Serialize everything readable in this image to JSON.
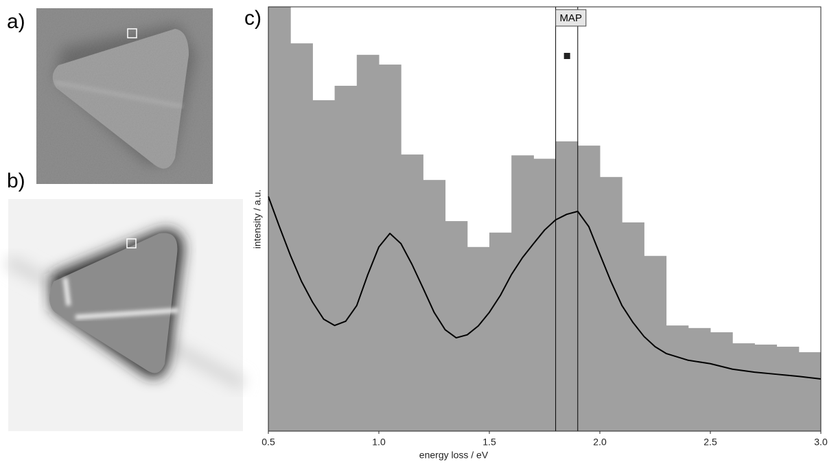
{
  "panel_labels": [
    "a)",
    "b)",
    "c)"
  ],
  "chart_data": {
    "type": "histogram",
    "xlabel": "energy loss / eV",
    "ylabel": "intensity / a.u.",
    "xlim": [
      0.5,
      3.0
    ],
    "ylim": [
      0,
      100
    ],
    "xticks": [
      0.5,
      {
        "value": 1,
        "label": "1.0"
      },
      1.5,
      {
        "value": 2,
        "label": "2.0"
      },
      2.5,
      {
        "value": 3,
        "label": "3.0"
      }
    ],
    "bins": [
      0.5,
      0.6,
      0.7,
      0.8,
      0.9,
      1.0,
      1.1,
      1.2,
      1.3,
      1.4,
      1.5,
      1.6,
      1.7,
      1.8,
      1.9,
      2.0,
      2.1,
      2.2,
      2.3,
      2.4,
      2.5,
      2.6,
      2.7,
      2.8,
      2.9,
      3.0
    ],
    "values": [
      100,
      91.4,
      78.0,
      81.4,
      88.7,
      86.4,
      65.2,
      59.2,
      49.5,
      43.4,
      46.8,
      65.0,
      64.2,
      68.3,
      67.3,
      59.9,
      49.2,
      41.3,
      24.9,
      24.3,
      23.3,
      20.7,
      20.4,
      19.9,
      18.6
    ],
    "color": "#a0a0a0",
    "overlay": {
      "type": "line",
      "color": "#000000",
      "x": [
        0.5,
        0.55,
        0.6,
        0.65,
        0.7,
        0.75,
        0.8,
        0.85,
        0.9,
        0.95,
        1.0,
        1.05,
        1.1,
        1.15,
        1.2,
        1.25,
        1.3,
        1.35,
        1.4,
        1.45,
        1.5,
        1.55,
        1.6,
        1.65,
        1.7,
        1.75,
        1.8,
        1.85,
        1.9,
        1.95,
        2.0,
        2.05,
        2.1,
        2.15,
        2.2,
        2.25,
        2.3,
        2.4,
        2.5,
        2.6,
        2.7,
        2.8,
        2.9,
        3.0
      ],
      "values": [
        55.3,
        48.2,
        41.4,
        35.3,
        30.4,
        26.4,
        24.9,
        25.9,
        29.6,
        36.9,
        43.4,
        46.6,
        44.2,
        39.3,
        33.7,
        28.0,
        23.9,
        22.0,
        22.7,
        24.8,
        28.0,
        32.0,
        36.9,
        40.9,
        44.2,
        47.4,
        49.8,
        51.1,
        51.8,
        48.2,
        41.7,
        35.3,
        29.6,
        25.6,
        22.3,
        19.9,
        18.3,
        16.7,
        15.9,
        14.6,
        13.9,
        13.4,
        12.9,
        12.3
      ]
    },
    "map_region": {
      "label": "MAP",
      "range": [
        1.8,
        1.9
      ]
    }
  }
}
